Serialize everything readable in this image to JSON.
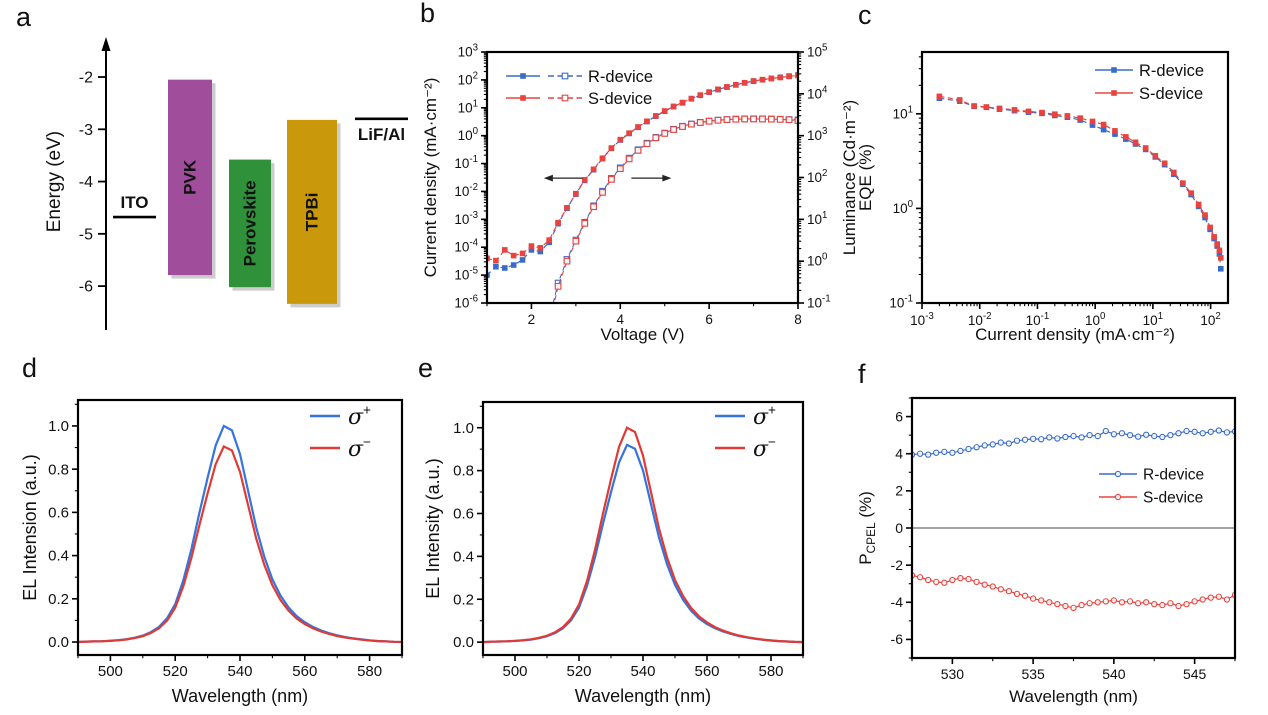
{
  "figure": {
    "panel_labels": [
      "a",
      "b",
      "c",
      "d",
      "e",
      "f"
    ],
    "colors": {
      "blue": "#3A6BC8",
      "red": "#E8433E",
      "spectrum_blue": "#3673DF",
      "spectrum_red": "#E03A34",
      "pvk_purple": "#A04D9B",
      "perovskite_green": "#30913B",
      "tpbi_gold": "#C9990B"
    }
  },
  "chart_data": [
    {
      "id": "a",
      "type": "energy-levels",
      "ylabel": "Energy (eV)",
      "yticks": [
        -2,
        -3,
        -4,
        -5,
        -6
      ],
      "axis_range": [
        -6.84,
        -1.33
      ],
      "bars": [
        {
          "name": "PVK",
          "top": -2.05,
          "bottom": -5.79,
          "color": "#A04D9B"
        },
        {
          "name": "Perovskite",
          "top": -3.58,
          "bottom": -6.02,
          "color": "#30913B"
        },
        {
          "name": "TPBi",
          "top": -2.82,
          "bottom": -6.34,
          "color": "#C9990B"
        }
      ],
      "electrodes": [
        {
          "name": "ITO",
          "energy": -4.68
        },
        {
          "name": "LiF/Al",
          "energy": -2.8
        }
      ]
    },
    {
      "id": "b",
      "type": "line",
      "axes": {
        "x": {
          "label": "Voltage (V)",
          "range": [
            1,
            8
          ],
          "ticks": [
            2,
            4,
            6,
            8
          ],
          "minor_step": 1,
          "tick_decimals": 0
        },
        "y_left": {
          "label": "Current density (mA·cm⁻²)",
          "log": true,
          "range": [
            1e-06,
            1000
          ]
        },
        "y_right": {
          "label": "Luminance (Cd·m⁻²)",
          "log": true,
          "range": [
            0.1,
            100000
          ]
        }
      },
      "x_J": [
        1,
        1.2,
        1.4,
        1.6,
        1.8,
        2,
        2.2,
        2.4,
        2.6,
        2.8,
        3,
        3.2,
        3.4,
        3.6,
        3.8,
        4,
        4.2,
        4.4,
        4.6,
        4.8,
        5,
        5.2,
        5.4,
        5.6,
        5.8,
        6,
        6.2,
        6.4,
        6.6,
        6.8,
        7,
        7.2,
        7.4,
        7.6,
        7.8,
        8
      ],
      "x_L": [
        2.4,
        2.6,
        2.8,
        3,
        3.2,
        3.4,
        3.6,
        3.8,
        4,
        4.2,
        4.4,
        4.6,
        4.8,
        5,
        5.2,
        5.4,
        5.6,
        5.8,
        6,
        6.2,
        6.4,
        6.6,
        6.8,
        7,
        7.2,
        7.4,
        7.6,
        7.8,
        8
      ],
      "series": [
        {
          "name": "R-device current density",
          "axis": "left",
          "color": "#3A6BC8",
          "marker": "sq",
          "width": 1.2,
          "dash": "5 3.5",
          "x_ref": "x_J",
          "y": [
            1e-05,
            2e-05,
            1.8e-05,
            2.3e-05,
            3.5e-05,
            8e-05,
            7e-05,
            0.00015,
            0.0007,
            0.0025,
            0.008,
            0.025,
            0.06,
            0.15,
            0.35,
            0.7,
            1.2,
            2.0,
            3.2,
            5.0,
            7.5,
            11,
            15,
            21,
            28,
            36,
            45,
            55,
            66,
            78,
            90,
            101,
            112,
            124,
            137,
            150
          ]
        },
        {
          "name": "S-device current density",
          "axis": "left",
          "color": "#E8433E",
          "marker": "sq",
          "width": 1.2,
          "dash": "5 3.5",
          "x_ref": "x_J",
          "y": [
            4e-05,
            3.3e-05,
            8e-05,
            5e-05,
            6e-05,
            0.00011,
            9.5e-05,
            0.00018,
            0.00076,
            0.0026,
            0.0083,
            0.026,
            0.062,
            0.155,
            0.36,
            0.72,
            1.23,
            2.05,
            3.28,
            5.1,
            7.65,
            11.2,
            15.4,
            21.4,
            28.5,
            36.6,
            45.8,
            56,
            67,
            79,
            91,
            102,
            113,
            122,
            133,
            144
          ]
        },
        {
          "name": "R-device luminance",
          "axis": "right",
          "color": "#3A6BC8",
          "marker": "osq",
          "width": 1.1,
          "dash": "5 3.5",
          "x_ref": "x_L",
          "y": [
            0.04,
            0.3,
            1.1,
            3.2,
            8.5,
            21,
            47,
            95,
            170,
            290,
            460,
            660,
            910,
            1150,
            1420,
            1680,
            1900,
            2080,
            2230,
            2350,
            2430,
            2490,
            2520,
            2530,
            2520,
            2500,
            2470,
            2430,
            2380
          ]
        },
        {
          "name": "S-device luminance",
          "axis": "right",
          "color": "#E8433E",
          "marker": "osq",
          "width": 1.1,
          "dash": "5 3.5",
          "x_ref": "x_L",
          "y": [
            0.03,
            0.25,
            1.0,
            3.0,
            8,
            20,
            44,
            90,
            162,
            278,
            445,
            640,
            890,
            1130,
            1400,
            1650,
            1880,
            2060,
            2210,
            2330,
            2420,
            2470,
            2500,
            2510,
            2500,
            2480,
            2450,
            2400,
            2300
          ]
        }
      ],
      "legend": {
        "items": [
          {
            "label": "R-device",
            "color": "#3A6BC8"
          },
          {
            "label": "S-device",
            "color": "#E8433E"
          }
        ]
      },
      "annotations": [
        {
          "type": "arrow",
          "dir": "left",
          "x1": 2.28,
          "x2": 3.15,
          "y": 0.03
        },
        {
          "type": "arrow",
          "dir": "right",
          "x1": 4.25,
          "x2": 5.15,
          "y": 0.03
        }
      ]
    },
    {
      "id": "c",
      "type": "line",
      "axes": {
        "x": {
          "label": "Current density (mA·cm⁻²)",
          "log": true,
          "range": [
            0.001,
            200
          ]
        },
        "y_left": {
          "label": "EQE (%)",
          "log": true,
          "range": [
            0.1,
            45
          ]
        }
      },
      "x": [
        0.002,
        0.0045,
        0.008,
        0.013,
        0.022,
        0.04,
        0.07,
        0.12,
        0.2,
        0.33,
        0.55,
        0.9,
        1.4,
        2.2,
        3.4,
        5,
        7.5,
        11,
        16,
        23,
        33,
        46,
        62,
        80,
        98,
        115,
        130,
        142,
        150
      ],
      "series": [
        {
          "name": "R-device",
          "axis": "left",
          "color": "#3A6BC8",
          "marker": "sq",
          "width": 1.2,
          "dash": "5 3.5",
          "x_ref": "x",
          "y": [
            14.6,
            13.6,
            12.0,
            11.7,
            11.2,
            10.8,
            10.4,
            10.1,
            9.6,
            9.2,
            8.6,
            7.6,
            6.8,
            6.1,
            5.4,
            4.8,
            4.2,
            3.5,
            2.9,
            2.3,
            1.8,
            1.4,
            1.05,
            0.8,
            0.6,
            0.48,
            0.4,
            0.33,
            0.23
          ]
        },
        {
          "name": "S-device",
          "axis": "left",
          "color": "#E8433E",
          "marker": "sq",
          "width": 1.2,
          "dash": "5 3.5",
          "x_ref": "x",
          "y": [
            15.3,
            14.0,
            12.1,
            11.8,
            11.4,
            11.0,
            10.6,
            10.3,
            9.9,
            9.5,
            9.0,
            8.3,
            7.7,
            6.6,
            5.7,
            5.0,
            4.35,
            3.6,
            3.0,
            2.4,
            1.85,
            1.45,
            1.1,
            0.85,
            0.63,
            0.5,
            0.42,
            0.36,
            0.3
          ]
        }
      ],
      "legend": {
        "items": [
          {
            "label": "R-device",
            "color": "#3A6BC8",
            "marker": "sq"
          },
          {
            "label": "S-device",
            "color": "#E8433E",
            "marker": "sq"
          }
        ]
      }
    },
    {
      "id": "d",
      "type": "line",
      "peak_wavelength_nm": 535,
      "axes": {
        "x": {
          "label": "Wavelength (nm)",
          "range": [
            490,
            590
          ],
          "ticks": [
            500,
            520,
            540,
            560,
            580
          ],
          "minor_step": 10,
          "tick_decimals": 0
        },
        "y_left": {
          "label": "EL Intension (a.u.)",
          "range": [
            -0.06,
            1.12
          ],
          "ticks": [
            0,
            0.2,
            0.4,
            0.6,
            0.8,
            1.0
          ],
          "minor_step": 0.1,
          "tick_decimals": 1
        }
      },
      "wavelength": [
        490,
        492.5,
        495,
        497.5,
        500,
        502.5,
        505,
        507.5,
        510,
        512.5,
        515,
        517.5,
        520,
        522.5,
        525,
        527.5,
        530,
        532.5,
        535,
        537.5,
        540,
        542.5,
        545,
        547.5,
        550,
        552.5,
        555,
        557.5,
        560,
        562.5,
        565,
        567.5,
        570,
        572.5,
        575,
        577.5,
        580,
        582.5,
        585,
        587.5,
        590
      ],
      "spectrum_shape": [
        0,
        0.002,
        0.003,
        0.004,
        0.006,
        0.009,
        0.013,
        0.02,
        0.03,
        0.046,
        0.07,
        0.11,
        0.175,
        0.285,
        0.43,
        0.6,
        0.76,
        0.91,
        1.0,
        0.98,
        0.87,
        0.7,
        0.53,
        0.395,
        0.29,
        0.215,
        0.16,
        0.12,
        0.092,
        0.07,
        0.054,
        0.041,
        0.031,
        0.023,
        0.017,
        0.012,
        0.008,
        0.005,
        0.003,
        0.001,
        0
      ],
      "series": [
        {
          "name": "sigma-plus",
          "axis": "left",
          "color": "#3673DF",
          "width": 2.2,
          "x_ref": "wavelength",
          "y_ref": "spectrum_shape",
          "y_scale": 1.0
        },
        {
          "name": "sigma-minus",
          "axis": "left",
          "color": "#E03A34",
          "width": 2.2,
          "x_ref": "wavelength",
          "y_ref": "spectrum_shape",
          "y_scale": 0.905
        }
      ],
      "legend": {
        "items": [
          {
            "symbol": "σ",
            "sup": "+",
            "color": "#3673DF"
          },
          {
            "symbol": "σ",
            "sup": "−",
            "color": "#E03A34"
          }
        ]
      }
    },
    {
      "id": "e",
      "type": "line",
      "peak_wavelength_nm": 535,
      "axes": {
        "x": {
          "label": "Wavelength (nm)",
          "range": [
            490,
            590
          ],
          "ticks": [
            500,
            520,
            540,
            560,
            580
          ],
          "minor_step": 10,
          "tick_decimals": 0
        },
        "y_left": {
          "label": "EL Intensity (a.u.)",
          "range": [
            -0.06,
            1.12
          ],
          "ticks": [
            0,
            0.2,
            0.4,
            0.6,
            0.8,
            1.0
          ],
          "minor_step": 0.1,
          "tick_decimals": 1
        }
      },
      "wavelength": [
        490,
        492.5,
        495,
        497.5,
        500,
        502.5,
        505,
        507.5,
        510,
        512.5,
        515,
        517.5,
        520,
        522.5,
        525,
        527.5,
        530,
        532.5,
        535,
        537.5,
        540,
        542.5,
        545,
        547.5,
        550,
        552.5,
        555,
        557.5,
        560,
        562.5,
        565,
        567.5,
        570,
        572.5,
        575,
        577.5,
        580,
        582.5,
        585,
        587.5,
        590
      ],
      "spectrum_shape": [
        0,
        0.002,
        0.003,
        0.004,
        0.006,
        0.009,
        0.013,
        0.02,
        0.03,
        0.046,
        0.07,
        0.11,
        0.175,
        0.285,
        0.43,
        0.6,
        0.76,
        0.91,
        1.0,
        0.98,
        0.87,
        0.7,
        0.53,
        0.395,
        0.29,
        0.215,
        0.16,
        0.12,
        0.092,
        0.07,
        0.054,
        0.041,
        0.031,
        0.023,
        0.017,
        0.012,
        0.008,
        0.005,
        0.003,
        0.001,
        0
      ],
      "series": [
        {
          "name": "sigma-plus",
          "axis": "left",
          "color": "#3673DF",
          "width": 2.2,
          "x_ref": "wavelength",
          "y_ref": "spectrum_shape",
          "y_scale": 0.92
        },
        {
          "name": "sigma-minus",
          "axis": "left",
          "color": "#E03A34",
          "width": 2.2,
          "x_ref": "wavelength",
          "y_ref": "spectrum_shape",
          "y_scale": 1.0
        }
      ],
      "legend": {
        "items": [
          {
            "symbol": "σ",
            "sup": "+",
            "color": "#3673DF"
          },
          {
            "symbol": "σ",
            "sup": "−",
            "color": "#E03A34"
          }
        ]
      }
    },
    {
      "id": "f",
      "type": "line",
      "axes": {
        "x": {
          "label": "Wavelength (nm)",
          "range": [
            527.5,
            547.5
          ],
          "ticks": [
            530,
            535,
            540,
            545
          ],
          "minor_step": 2.5,
          "tick_decimals": 0
        },
        "y_left": {
          "label_parts": [
            {
              "t": "P"
            },
            {
              "t": "CPEL",
              "sub": true
            },
            {
              "t": " (%)"
            }
          ],
          "range": [
            -7,
            7
          ],
          "ticks": [
            -6,
            -4,
            -2,
            0,
            2,
            4,
            6
          ],
          "minor_step": 1,
          "tick_decimals": 0,
          "zero_line": true
        }
      },
      "x": [
        527.5,
        528,
        528.5,
        529,
        529.5,
        530,
        530.5,
        531,
        531.5,
        532,
        532.5,
        533,
        533.5,
        534,
        534.5,
        535,
        535.5,
        536,
        536.5,
        537,
        537.5,
        538,
        538.5,
        539,
        539.5,
        540,
        540.5,
        541,
        541.5,
        542,
        542.5,
        543,
        543.5,
        544,
        544.5,
        545,
        545.5,
        546,
        546.5,
        547,
        547.5
      ],
      "series": [
        {
          "name": "R-device",
          "axis": "left",
          "color": "#3A6BC8",
          "marker": "oc",
          "width": 1.2,
          "x_ref": "x",
          "y": [
            3.95,
            4.0,
            3.95,
            4.05,
            4.1,
            4.05,
            4.15,
            4.25,
            4.35,
            4.45,
            4.5,
            4.6,
            4.55,
            4.7,
            4.75,
            4.8,
            4.78,
            4.88,
            4.82,
            4.9,
            4.95,
            4.88,
            5.0,
            4.95,
            5.22,
            5.05,
            5.1,
            5.0,
            4.92,
            5.02,
            4.95,
            4.9,
            5.0,
            5.1,
            5.22,
            5.18,
            5.1,
            5.18,
            5.25,
            5.15,
            5.2
          ]
        },
        {
          "name": "S-device",
          "axis": "left",
          "color": "#E8433E",
          "marker": "oc",
          "width": 1.2,
          "x_ref": "x",
          "y": [
            -2.55,
            -2.65,
            -2.8,
            -2.9,
            -2.95,
            -2.8,
            -2.7,
            -2.75,
            -2.9,
            -3.05,
            -3.15,
            -3.3,
            -3.4,
            -3.55,
            -3.65,
            -3.8,
            -3.9,
            -4.0,
            -4.1,
            -4.2,
            -4.3,
            -4.15,
            -4.05,
            -4.0,
            -3.95,
            -3.9,
            -4.0,
            -3.95,
            -4.05,
            -4.0,
            -4.1,
            -4.15,
            -4.05,
            -4.2,
            -4.1,
            -3.95,
            -3.85,
            -3.75,
            -3.7,
            -3.85,
            -3.6
          ]
        }
      ],
      "legend": {
        "items": [
          {
            "label": "R-device",
            "color": "#3A6BC8",
            "marker": "oc"
          },
          {
            "label": "S-device",
            "color": "#E8433E",
            "marker": "oc"
          }
        ]
      }
    }
  ]
}
